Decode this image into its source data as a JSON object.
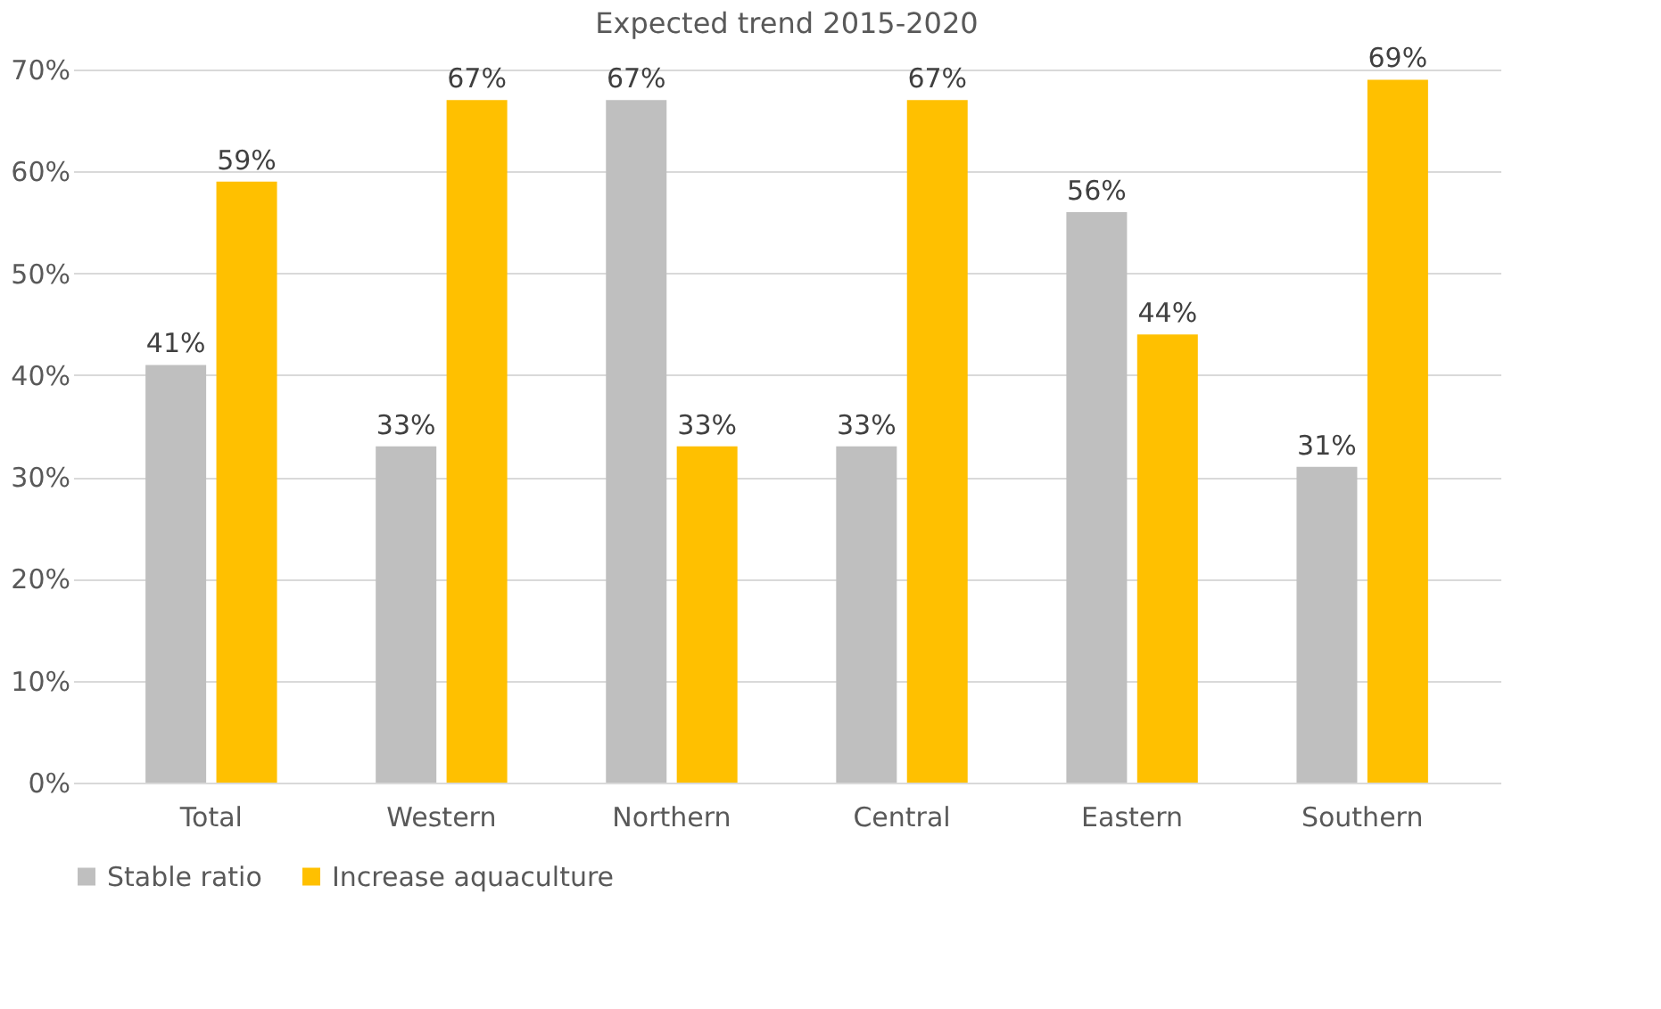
{
  "chart_data": {
    "type": "bar",
    "title": "Expected trend 2015-2020",
    "categories": [
      "Total",
      "Western",
      "Northern",
      "Central",
      "Eastern",
      "Southern"
    ],
    "series": [
      {
        "name": "Stable ratio",
        "color": "#bfbfbf",
        "values": [
          41,
          33,
          67,
          33,
          56,
          31
        ],
        "value_labels": [
          "41%",
          "33%",
          "67%",
          "33%",
          "56%",
          "31%"
        ]
      },
      {
        "name": "Increase aquaculture",
        "color": "#ffc000",
        "values": [
          59,
          67,
          33,
          67,
          44,
          69
        ],
        "value_labels": [
          "59%",
          "67%",
          "33%",
          "67%",
          "44%",
          "69%"
        ]
      }
    ],
    "ylim": [
      0,
      70
    ],
    "yticks": [
      {
        "value": 0,
        "label": "0%"
      },
      {
        "value": 10,
        "label": "10%"
      },
      {
        "value": 20,
        "label": "20%"
      },
      {
        "value": 30,
        "label": "30%"
      },
      {
        "value": 40,
        "label": "40%"
      },
      {
        "value": 50,
        "label": "50%"
      },
      {
        "value": 60,
        "label": "60%"
      },
      {
        "value": 70,
        "label": "70%"
      }
    ],
    "grid": "y",
    "legend": "bottom"
  }
}
